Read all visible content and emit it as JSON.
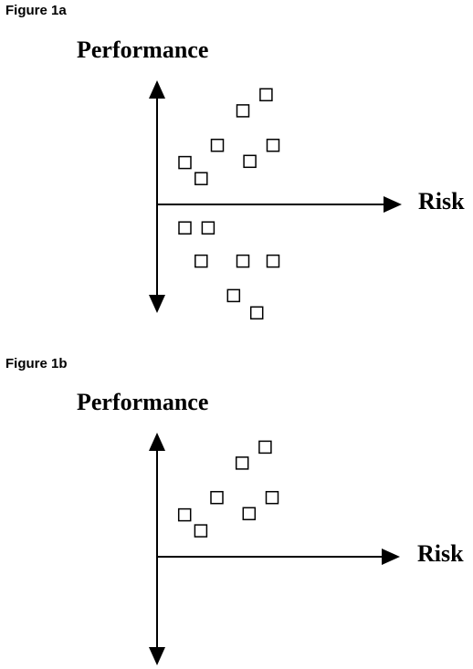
{
  "chart_data": [
    {
      "figure_label": "Figure 1a",
      "type": "scatter",
      "ylabel": "Performance",
      "xlabel": "Risk",
      "xlim": [
        0,
        10
      ],
      "ylim": [
        -10,
        10
      ],
      "points": [
        {
          "x": 1.2,
          "y": 3.4
        },
        {
          "x": 1.9,
          "y": 2.1
        },
        {
          "x": 2.6,
          "y": 4.8
        },
        {
          "x": 3.7,
          "y": 7.6
        },
        {
          "x": 4.0,
          "y": 3.5
        },
        {
          "x": 4.7,
          "y": 8.9
        },
        {
          "x": 5.0,
          "y": 4.8
        },
        {
          "x": 1.2,
          "y": -1.9
        },
        {
          "x": 2.2,
          "y": -1.9
        },
        {
          "x": 1.9,
          "y": -4.6
        },
        {
          "x": 3.7,
          "y": -4.6
        },
        {
          "x": 5.0,
          "y": -4.6
        },
        {
          "x": 3.3,
          "y": -7.4
        },
        {
          "x": 4.3,
          "y": -8.8
        }
      ]
    },
    {
      "figure_label": "Figure 1b",
      "type": "scatter",
      "ylabel": "Performance",
      "xlabel": "Risk",
      "xlim": [
        0,
        10
      ],
      "ylim": [
        -10,
        10
      ],
      "points": [
        {
          "x": 1.2,
          "y": 3.4
        },
        {
          "x": 1.9,
          "y": 2.1
        },
        {
          "x": 2.6,
          "y": 4.8
        },
        {
          "x": 3.7,
          "y": 7.6
        },
        {
          "x": 4.0,
          "y": 3.5
        },
        {
          "x": 4.7,
          "y": 8.9
        },
        {
          "x": 5.0,
          "y": 4.8
        }
      ]
    }
  ]
}
